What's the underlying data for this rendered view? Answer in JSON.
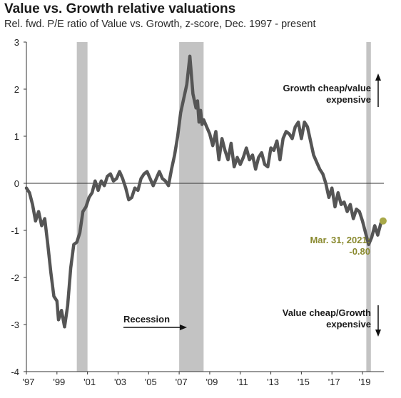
{
  "title": "Value vs. Growth relative valuations",
  "subtitle": "Rel. fwd. P/E ratio of Value vs. Growth, z-score, Dec. 1997 - present",
  "colors": {
    "line": "#555555",
    "recession": "#c3c3c3",
    "last_point": "#a8a848",
    "last_label": "#8a8a30"
  },
  "chart_data": {
    "type": "line",
    "title": "Value vs. Growth relative valuations",
    "subtitle": "Rel. fwd. P/E ratio of Value vs. Growth, z-score, Dec. 1997 - present",
    "xlabel": "",
    "ylabel": "",
    "xlim": [
      1997.9,
      2021.3
    ],
    "ylim": [
      -4,
      3
    ],
    "y_ticks": [
      3,
      2,
      1,
      0,
      -1,
      -2,
      -3,
      -4
    ],
    "x_ticks": [
      {
        "label": "'97",
        "year": 1997.9
      },
      {
        "label": "'99",
        "year": 1999.9
      },
      {
        "label": "'01",
        "year": 2001.9
      },
      {
        "label": "'03",
        "year": 2003.9
      },
      {
        "label": "'05",
        "year": 2005.9
      },
      {
        "label": "'07",
        "year": 2007.9
      },
      {
        "label": "'09",
        "year": 2009.9
      },
      {
        "label": "'11",
        "year": 2011.9
      },
      {
        "label": "'13",
        "year": 2013.9
      },
      {
        "label": "'15",
        "year": 2015.9
      },
      {
        "label": "'17",
        "year": 2017.9
      },
      {
        "label": "'19",
        "year": 2019.9
      }
    ],
    "recessions": [
      [
        2001.2,
        2001.9
      ],
      [
        2007.9,
        2009.5
      ],
      [
        2020.15,
        2020.45
      ]
    ],
    "series": [
      {
        "x": [
          1997.9,
          1998.1,
          1998.3,
          1998.5,
          1998.7,
          1998.9,
          1999.1,
          1999.3,
          1999.5,
          1999.7,
          1999.9,
          2000.0,
          2000.2,
          2000.4,
          2000.6,
          2000.8,
          2001.0,
          2001.2,
          2001.4,
          2001.6,
          2001.8,
          2002.0,
          2002.2,
          2002.4,
          2002.6,
          2002.8,
          2003.0,
          2003.2,
          2003.4,
          2003.6,
          2003.8,
          2004.0,
          2004.2,
          2004.4,
          2004.6,
          2004.8,
          2005.0,
          2005.2,
          2005.4,
          2005.6,
          2005.8,
          2006.0,
          2006.2,
          2006.4,
          2006.6,
          2006.8,
          2007.0,
          2007.2,
          2007.4,
          2007.6,
          2007.8,
          2008.0,
          2008.2,
          2008.4,
          2008.6,
          2008.8,
          2009.0,
          2009.1,
          2009.2,
          2009.3,
          2009.4,
          2009.5,
          2009.7,
          2009.9,
          2010.1,
          2010.3,
          2010.5,
          2010.7,
          2010.9,
          2011.1,
          2011.3,
          2011.5,
          2011.7,
          2011.9,
          2012.1,
          2012.3,
          2012.5,
          2012.7,
          2012.9,
          2013.1,
          2013.3,
          2013.5,
          2013.7,
          2013.9,
          2014.1,
          2014.3,
          2014.5,
          2014.7,
          2014.9,
          2015.1,
          2015.3,
          2015.5,
          2015.7,
          2015.9,
          2016.1,
          2016.3,
          2016.5,
          2016.7,
          2016.9,
          2017.1,
          2017.3,
          2017.5,
          2017.7,
          2017.9,
          2018.1,
          2018.3,
          2018.5,
          2018.7,
          2018.9,
          2019.1,
          2019.3,
          2019.5,
          2019.7,
          2019.9,
          2020.1,
          2020.3,
          2020.5,
          2020.7,
          2020.9,
          2021.1,
          2021.25
        ],
        "y": [
          -0.1,
          -0.2,
          -0.45,
          -0.8,
          -0.6,
          -0.9,
          -0.75,
          -1.3,
          -1.9,
          -2.4,
          -2.5,
          -2.9,
          -2.7,
          -3.05,
          -2.6,
          -1.8,
          -1.3,
          -1.25,
          -1.05,
          -0.6,
          -0.5,
          -0.3,
          -0.2,
          0.05,
          -0.15,
          0.05,
          -0.05,
          0.15,
          0.2,
          0.05,
          0.1,
          0.25,
          0.1,
          -0.1,
          -0.35,
          -0.3,
          -0.1,
          -0.15,
          0.1,
          0.2,
          0.25,
          0.1,
          -0.05,
          0.1,
          0.25,
          0.1,
          0.05,
          -0.05,
          0.3,
          0.6,
          1.0,
          1.5,
          1.8,
          2.1,
          2.7,
          1.9,
          1.6,
          1.75,
          1.3,
          1.55,
          1.25,
          1.35,
          1.2,
          1.05,
          0.8,
          1.1,
          0.5,
          0.95,
          0.7,
          0.5,
          0.85,
          0.35,
          0.55,
          0.4,
          0.55,
          0.75,
          0.5,
          0.6,
          0.3,
          0.55,
          0.65,
          0.4,
          0.35,
          0.75,
          0.7,
          0.9,
          0.5,
          0.95,
          1.1,
          1.05,
          0.95,
          1.2,
          1.3,
          0.95,
          1.3,
          1.2,
          0.9,
          0.6,
          0.45,
          0.3,
          0.2,
          0.0,
          -0.3,
          -0.1,
          -0.5,
          -0.2,
          -0.45,
          -0.4,
          -0.6,
          -0.45,
          -0.75,
          -0.55,
          -0.6,
          -0.8,
          -1.05,
          -1.3,
          -1.15,
          -0.9,
          -1.1,
          -0.85,
          -0.8
        ]
      }
    ],
    "last_point": {
      "x": 2021.25,
      "y": -0.8,
      "label_line1": "Mar. 31, 2021:",
      "label_line2": "-0.80"
    },
    "annotations": {
      "growth_cheap_line1": "Growth cheap/value",
      "growth_cheap_line2": "expensive",
      "value_cheap_line1": "Value cheap/Growth",
      "value_cheap_line2": "expensive",
      "recession": "Recession"
    }
  }
}
